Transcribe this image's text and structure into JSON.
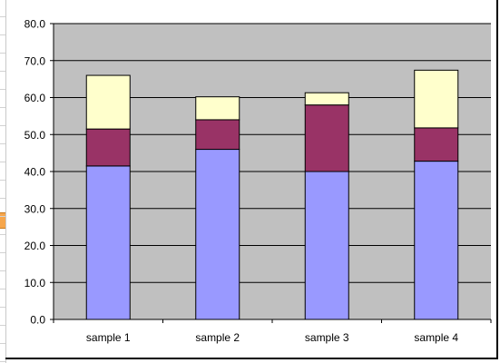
{
  "chart_data": {
    "type": "bar",
    "stacked": true,
    "categories": [
      "sample 1",
      "sample 2",
      "sample 3",
      "sample 4"
    ],
    "series": [
      {
        "values": [
          41.5,
          46.0,
          40.0,
          42.8
        ],
        "color": "#9999ff"
      },
      {
        "values": [
          10.0,
          8.0,
          18.0,
          9.0
        ],
        "color": "#993366"
      },
      {
        "values": [
          14.5,
          6.2,
          3.3,
          15.6
        ],
        "color": "#ffffcc"
      }
    ],
    "ylim": [
      0,
      80
    ],
    "yticks": [
      "0.0",
      "10.0",
      "20.0",
      "30.0",
      "40.0",
      "50.0",
      "60.0",
      "70.0",
      "80.0"
    ],
    "grid": true,
    "plot_background": "#c0c0c0",
    "title": "",
    "xlabel": "",
    "ylabel": ""
  }
}
